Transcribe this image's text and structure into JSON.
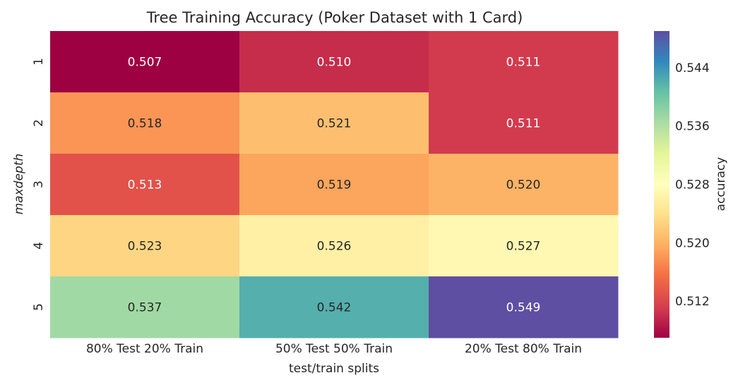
{
  "chart_data": {
    "type": "heatmap",
    "title": "Tree Training Accuracy (Poker Dataset with 1 Card)",
    "xlabel": "test/train splits",
    "ylabel": "maxdepth",
    "x_categories": [
      "80% Test 20% Train",
      "50% Test 50% Train",
      "20% Test 80% Train"
    ],
    "y_categories": [
      "1",
      "2",
      "3",
      "4",
      "5"
    ],
    "values": [
      [
        0.507,
        0.51,
        0.511
      ],
      [
        0.518,
        0.521,
        0.511
      ],
      [
        0.513,
        0.519,
        0.52
      ],
      [
        0.523,
        0.526,
        0.527
      ],
      [
        0.537,
        0.542,
        0.549
      ]
    ],
    "colorbar": {
      "label": "accuracy",
      "ticks": [
        0.512,
        0.52,
        0.528,
        0.536,
        0.544
      ],
      "range": [
        0.507,
        0.549
      ],
      "colormap": "Spectral"
    },
    "grid": false
  }
}
